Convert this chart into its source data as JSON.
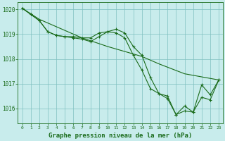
{
  "background_color": "#c8ecec",
  "grid_color": "#80c0c0",
  "line_color": "#1a6b1a",
  "marker_color": "#1a6b1a",
  "title": "Graphe pression niveau de la mer (hPa)",
  "xlim": [
    -0.5,
    23.5
  ],
  "ylim": [
    1015.4,
    1020.3
  ],
  "yticks": [
    1016,
    1017,
    1018,
    1019,
    1020
  ],
  "xticks": [
    0,
    1,
    2,
    3,
    4,
    5,
    6,
    7,
    8,
    9,
    10,
    11,
    12,
    13,
    14,
    15,
    16,
    17,
    18,
    19,
    20,
    21,
    22,
    23
  ],
  "series": [
    {
      "x": [
        0,
        2,
        5,
        7,
        10,
        14,
        16,
        19,
        23
      ],
      "y": [
        1020.05,
        1019.6,
        1019.15,
        1018.85,
        1018.5,
        1018.1,
        1017.8,
        1017.4,
        1017.15
      ]
    },
    {
      "x": [
        0,
        1,
        2,
        3,
        4,
        5,
        6,
        7,
        8,
        9,
        10,
        11,
        12,
        13,
        14,
        15,
        16,
        17,
        18,
        19,
        20,
        21,
        22,
        23
      ],
      "y": [
        1020.05,
        1019.8,
        1019.55,
        1019.1,
        1018.95,
        1018.9,
        1018.9,
        1018.85,
        1018.85,
        1019.05,
        1019.1,
        1019.05,
        1018.85,
        1018.15,
        1017.55,
        1016.8,
        1016.6,
        1016.4,
        1015.75,
        1015.9,
        1015.85,
        1016.45,
        1016.35,
        1017.15
      ]
    },
    {
      "x": [
        0,
        1,
        2,
        3,
        4,
        5,
        6,
        7,
        8,
        9,
        10,
        11,
        12,
        13,
        14,
        15,
        16,
        17,
        18,
        19,
        20,
        21,
        22,
        23
      ],
      "y": [
        1020.05,
        1019.8,
        1019.55,
        1019.1,
        1018.95,
        1018.9,
        1018.85,
        1018.8,
        1018.7,
        1018.9,
        1019.1,
        1019.2,
        1019.05,
        1018.5,
        1018.15,
        1017.25,
        1016.6,
        1016.5,
        1015.75,
        1016.1,
        1015.85,
        1016.95,
        1016.55,
        1017.15
      ]
    }
  ]
}
